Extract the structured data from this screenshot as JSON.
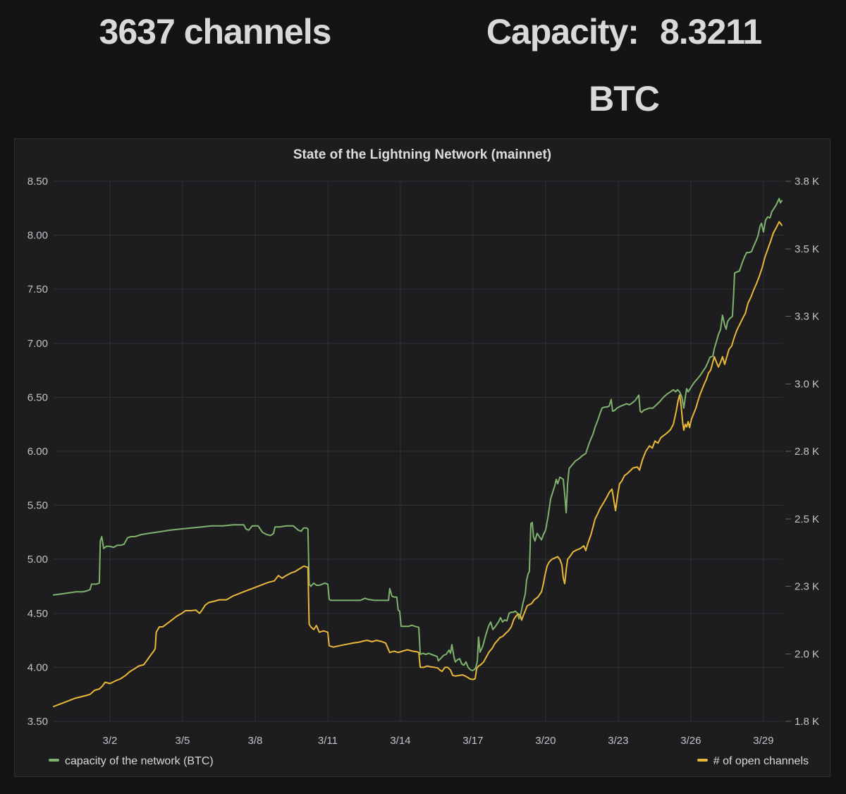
{
  "header": {
    "channels_stat": {
      "value": "3637",
      "label": "channels"
    },
    "capacity_stat": {
      "label": "Capacity:",
      "value": "8.3211",
      "unit": "BTC"
    }
  },
  "panel": {
    "title": "State of the Lightning Network (mainnet)"
  },
  "legend": [
    {
      "label": "capacity of the network (BTC)",
      "color": "#7eb26d"
    },
    {
      "label": "# of open channels",
      "color": "#eab839"
    }
  ],
  "chart_data": {
    "type": "line",
    "title": "State of the Lightning Network (mainnet)",
    "x_unit": "day of March (decimal, window ≈ Feb 27 – Mar 29)",
    "x_range": [
      -0.33,
      29.82
    ],
    "x_ticks": [
      {
        "day": 2,
        "label": "3/2"
      },
      {
        "day": 5,
        "label": "3/5"
      },
      {
        "day": 8,
        "label": "3/8"
      },
      {
        "day": 11,
        "label": "3/11"
      },
      {
        "day": 14,
        "label": "3/14"
      },
      {
        "day": 17,
        "label": "3/17"
      },
      {
        "day": 20,
        "label": "3/20"
      },
      {
        "day": 23,
        "label": "3/23"
      },
      {
        "day": 26,
        "label": "3/26"
      },
      {
        "day": 29,
        "label": "3/29"
      }
    ],
    "grid": true,
    "legend_position": "bottom",
    "left_axis": {
      "range": [
        3.5,
        8.5
      ],
      "tick_values": [
        8.5,
        8.0,
        7.5,
        7.0,
        6.5,
        6.0,
        5.5,
        5.0,
        4.5,
        4.0,
        3.5
      ],
      "tick_labels": [
        "8.50",
        "8.00",
        "7.50",
        "7.00",
        "6.50",
        "6.00",
        "5.50",
        "5.00",
        "4.50",
        "4.00",
        "3.50"
      ]
    },
    "right_axis": {
      "range": [
        1800,
        3800
      ],
      "tick_values": [
        3800,
        3550,
        3300,
        3050,
        2800,
        2550,
        2300,
        2050,
        1800
      ],
      "tick_labels": [
        "3.8 K",
        "3.5 K",
        "3.3 K",
        "3.0 K",
        "2.8 K",
        "2.5 K",
        "2.3 K",
        "2.0 K",
        "1.8 K"
      ]
    },
    "series": [
      {
        "id": "capacity",
        "name": "capacity of the network (BTC)",
        "axis": "left",
        "color": "#7eb26d",
        "x": [
          -0.33,
          0,
          0.3,
          0.6,
          0.9,
          1.07,
          1.18,
          1.24,
          1.42,
          1.56,
          1.6,
          1.66,
          1.74,
          1.85,
          2,
          2.15,
          2.3,
          2.44,
          2.58,
          2.73,
          2.87,
          3.02,
          3.17,
          3.31,
          3.6,
          3.9,
          4.2,
          4.5,
          4.9,
          5.35,
          5.8,
          6.2,
          6.66,
          7.1,
          7.53,
          7.62,
          7.74,
          7.88,
          8.12,
          8.3,
          8.47,
          8.64,
          8.76,
          8.82,
          9,
          9.3,
          9.57,
          9.78,
          9.9,
          10,
          10.13,
          10.18,
          10.23,
          10.3,
          10.42,
          10.53,
          10.65,
          10.77,
          10.88,
          11,
          11.06,
          11.12,
          11.5,
          11.8,
          12.1,
          12.34,
          12.54,
          12.66,
          12.92,
          13.2,
          13.51,
          13.56,
          13.65,
          13.74,
          13.85,
          13.91,
          13.97,
          14.03,
          14.2,
          14.35,
          14.47,
          14.6,
          14.76,
          14.82,
          14.93,
          15.05,
          15.17,
          15.28,
          15.4,
          15.52,
          15.57,
          15.66,
          15.78,
          15.89,
          16.01,
          16.07,
          16.13,
          16.21,
          16.27,
          16.36,
          16.45,
          16.54,
          16.62,
          16.71,
          16.8,
          16.88,
          16.97,
          17.06,
          17.12,
          17.18,
          17.23,
          17.29,
          17.41,
          17.53,
          17.64,
          17.73,
          17.82,
          17.93,
          18.05,
          18.14,
          18.22,
          18.31,
          18.4,
          18.49,
          18.57,
          18.66,
          18.75,
          18.84,
          18.9,
          18.98,
          19.07,
          19.16,
          19.21,
          19.27,
          19.33,
          19.39,
          19.45,
          19.5,
          19.56,
          19.65,
          19.74,
          19.83,
          19.91,
          20,
          20.09,
          20.21,
          20.29,
          20.38,
          20.44,
          20.5,
          20.59,
          20.67,
          20.73,
          20.79,
          20.85,
          20.91,
          20.97,
          21.08,
          21.23,
          21.37,
          21.52,
          21.66,
          21.81,
          21.96,
          22.04,
          22.16,
          22.25,
          22.33,
          22.45,
          22.54,
          22.63,
          22.71,
          22.77,
          22.86,
          22.95,
          23.03,
          23.12,
          23.24,
          23.35,
          23.47,
          23.59,
          23.7,
          23.79,
          23.85,
          23.91,
          23.97,
          24.05,
          24.17,
          24.29,
          24.43,
          24.58,
          24.72,
          24.87,
          25.02,
          25.16,
          25.28,
          25.37,
          25.45,
          25.54,
          25.63,
          25.71,
          25.77,
          25.83,
          25.89,
          25.95,
          26.03,
          26.15,
          26.27,
          26.38,
          26.5,
          26.62,
          26.7,
          26.79,
          26.91,
          26.97,
          27.05,
          27.14,
          27.23,
          27.31,
          27.4,
          27.46,
          27.52,
          27.61,
          27.72,
          27.77,
          27.81,
          27.9,
          28.01,
          28.13,
          28.22,
          28.31,
          28.42,
          28.51,
          28.6,
          28.68,
          28.77,
          28.86,
          28.92,
          29,
          29.09,
          29.18,
          29.27,
          29.35,
          29.44,
          29.53,
          29.59,
          29.65,
          29.7,
          29.76
        ],
        "y": [
          4.67,
          4.68,
          4.69,
          4.7,
          4.7,
          4.71,
          4.72,
          4.77,
          4.77,
          4.78,
          5.17,
          5.21,
          5.1,
          5.12,
          5.12,
          5.11,
          5.13,
          5.13,
          5.14,
          5.2,
          5.21,
          5.21,
          5.22,
          5.23,
          5.24,
          5.25,
          5.26,
          5.27,
          5.28,
          5.29,
          5.3,
          5.31,
          5.31,
          5.32,
          5.32,
          5.28,
          5.27,
          5.31,
          5.31,
          5.25,
          5.23,
          5.22,
          5.24,
          5.3,
          5.3,
          5.31,
          5.31,
          5.27,
          5.26,
          5.29,
          5.29,
          5.28,
          4.77,
          4.75,
          4.78,
          4.76,
          4.76,
          4.77,
          4.78,
          4.77,
          4.63,
          4.62,
          4.62,
          4.62,
          4.62,
          4.62,
          4.64,
          4.63,
          4.62,
          4.62,
          4.62,
          4.73,
          4.66,
          4.65,
          4.65,
          4.53,
          4.52,
          4.38,
          4.38,
          4.38,
          4.39,
          4.38,
          4.37,
          4.12,
          4.13,
          4.12,
          4.13,
          4.12,
          4.11,
          4.1,
          4.06,
          4.08,
          4.11,
          4.12,
          4.16,
          4.13,
          4.21,
          4.1,
          4.05,
          4.07,
          4.08,
          4.03,
          4.02,
          4.05,
          4,
          3.98,
          3.97,
          3.98,
          4,
          4.06,
          4.28,
          4.14,
          4.2,
          4.3,
          4.38,
          4.42,
          4.35,
          4.38,
          4.42,
          4.46,
          4.42,
          4.44,
          4.43,
          4.5,
          4.51,
          4.51,
          4.52,
          4.5,
          4.45,
          4.5,
          4.6,
          4.68,
          4.8,
          4.86,
          4.89,
          5.33,
          5.34,
          5.21,
          5.17,
          5.24,
          5.21,
          5.18,
          5.23,
          5.27,
          5.38,
          5.56,
          5.62,
          5.68,
          5.74,
          5.7,
          5.76,
          5.75,
          5.74,
          5.6,
          5.43,
          5.7,
          5.84,
          5.87,
          5.91,
          5.93,
          5.96,
          5.98,
          6.08,
          6.16,
          6.22,
          6.29,
          6.35,
          6.4,
          6.41,
          6.41,
          6.42,
          6.48,
          6.37,
          6.38,
          6.4,
          6.41,
          6.42,
          6.43,
          6.44,
          6.43,
          6.45,
          6.47,
          6.5,
          6.52,
          6.37,
          6.36,
          6.38,
          6.39,
          6.4,
          6.4,
          6.43,
          6.46,
          6.5,
          6.53,
          6.55,
          6.57,
          6.55,
          6.57,
          6.55,
          6.5,
          6.4,
          6.5,
          6.58,
          6.55,
          6.57,
          6.6,
          6.64,
          6.67,
          6.7,
          6.74,
          6.78,
          6.82,
          6.87,
          6.88,
          6.95,
          7.01,
          7.08,
          7.13,
          7.26,
          7.17,
          7.13,
          7.2,
          7.23,
          7.25,
          7.45,
          7.65,
          7.66,
          7.67,
          7.75,
          7.8,
          7.84,
          7.84,
          7.85,
          7.9,
          7.94,
          7.99,
          8.08,
          8.11,
          8.03,
          8.14,
          8.17,
          8.16,
          8.22,
          8.25,
          8.28,
          8.31,
          8.34,
          8.3,
          8.32
        ]
      },
      {
        "id": "channels",
        "name": "# of open channels",
        "axis": "right",
        "color": "#eab839",
        "x": [
          -0.33,
          0.11,
          0.54,
          0.98,
          1.18,
          1.36,
          1.56,
          1.68,
          1.8,
          2,
          2.23,
          2.44,
          2.64,
          2.82,
          3.02,
          3.19,
          3.4,
          3.6,
          3.72,
          3.81,
          3.87,
          3.91,
          4.04,
          4.18,
          4.33,
          4.48,
          4.62,
          4.77,
          4.97,
          5.12,
          5.35,
          5.55,
          5.7,
          5.79,
          5.93,
          6.08,
          6.31,
          6.52,
          6.81,
          7.1,
          7.39,
          7.68,
          7.97,
          8.26,
          8.55,
          8.79,
          8.96,
          9.11,
          9.28,
          9.49,
          9.66,
          9.83,
          10.01,
          10.18,
          10.23,
          10.3,
          10.42,
          10.53,
          10.65,
          10.82,
          11,
          11.06,
          11.23,
          11.47,
          11.76,
          12.05,
          12.28,
          12.49,
          12.63,
          12.83,
          13.01,
          13.21,
          13.39,
          13.56,
          13.74,
          13.91,
          14.09,
          14.29,
          14.5,
          14.67,
          14.76,
          14.82,
          14.96,
          15.11,
          15.25,
          15.4,
          15.54,
          15.63,
          15.72,
          15.84,
          15.95,
          16.07,
          16.16,
          16.27,
          16.42,
          16.57,
          16.68,
          16.8,
          16.88,
          17,
          17.09,
          17.15,
          17.23,
          17.32,
          17.44,
          17.56,
          17.67,
          17.79,
          17.9,
          18.02,
          18.11,
          18.23,
          18.34,
          18.46,
          18.58,
          18.69,
          18.78,
          18.87,
          18.95,
          19.01,
          19.07,
          19.16,
          19.24,
          19.33,
          19.42,
          19.53,
          19.68,
          19.83,
          19.91,
          19.97,
          20.06,
          20.15,
          20.26,
          20.38,
          20.5,
          20.59,
          20.67,
          20.73,
          20.79,
          20.85,
          20.91,
          21,
          21.14,
          21.29,
          21.43,
          21.58,
          21.66,
          21.75,
          21.87,
          21.96,
          22.04,
          22.16,
          22.25,
          22.33,
          22.45,
          22.54,
          22.63,
          22.74,
          22.8,
          22.89,
          22.98,
          23.06,
          23.15,
          23.26,
          23.38,
          23.5,
          23.61,
          23.7,
          23.79,
          23.88,
          24,
          24.14,
          24.29,
          24.41,
          24.52,
          24.64,
          24.76,
          24.87,
          25.02,
          25.16,
          25.28,
          25.4,
          25.48,
          25.54,
          25.6,
          25.66,
          25.71,
          25.77,
          25.83,
          25.89,
          25.95,
          26.03,
          26.12,
          26.21,
          26.3,
          26.38,
          26.47,
          26.56,
          26.65,
          26.73,
          26.82,
          26.91,
          26.97,
          27.05,
          27.14,
          27.23,
          27.31,
          27.4,
          27.49,
          27.58,
          27.69,
          27.78,
          27.9,
          28.01,
          28.13,
          28.25,
          28.36,
          28.48,
          28.6,
          28.71,
          28.83,
          28.95,
          29.06,
          29.18,
          29.3,
          29.41,
          29.53,
          29.65,
          29.76
        ],
        "y": [
          1855,
          1870,
          1885,
          1895,
          1900,
          1915,
          1920,
          1930,
          1945,
          1940,
          1950,
          1958,
          1970,
          1984,
          1995,
          2005,
          2010,
          2035,
          2050,
          2060,
          2070,
          2130,
          2150,
          2150,
          2160,
          2170,
          2180,
          2190,
          2200,
          2210,
          2210,
          2212,
          2200,
          2210,
          2230,
          2240,
          2245,
          2250,
          2250,
          2265,
          2275,
          2285,
          2295,
          2305,
          2315,
          2320,
          2340,
          2330,
          2340,
          2350,
          2355,
          2365,
          2375,
          2370,
          2160,
          2150,
          2140,
          2155,
          2130,
          2135,
          2130,
          2080,
          2075,
          2080,
          2085,
          2090,
          2093,
          2098,
          2100,
          2095,
          2100,
          2096,
          2090,
          2055,
          2060,
          2055,
          2060,
          2065,
          2060,
          2058,
          2055,
          2000,
          2000,
          2005,
          2002,
          2000,
          1998,
          1990,
          1985,
          2000,
          2000,
          1990,
          1970,
          1968,
          1970,
          1972,
          1968,
          1962,
          1957,
          1955,
          1958,
          1995,
          2005,
          2010,
          2020,
          2040,
          2058,
          2070,
          2088,
          2100,
          2110,
          2115,
          2125,
          2135,
          2150,
          2178,
          2190,
          2198,
          2193,
          2175,
          2190,
          2210,
          2228,
          2232,
          2236,
          2250,
          2260,
          2280,
          2310,
          2340,
          2375,
          2390,
          2400,
          2405,
          2410,
          2400,
          2380,
          2330,
          2310,
          2360,
          2400,
          2410,
          2428,
          2435,
          2440,
          2450,
          2432,
          2460,
          2490,
          2520,
          2548,
          2570,
          2588,
          2600,
          2618,
          2632,
          2648,
          2660,
          2630,
          2580,
          2640,
          2680,
          2690,
          2710,
          2718,
          2728,
          2738,
          2740,
          2742,
          2730,
          2768,
          2800,
          2820,
          2812,
          2838,
          2830,
          2850,
          2858,
          2868,
          2880,
          2900,
          2950,
          2990,
          3008,
          2970,
          2910,
          2878,
          2900,
          2890,
          2910,
          2888,
          2920,
          2940,
          2960,
          2988,
          3010,
          3030,
          3050,
          3068,
          3090,
          3100,
          3130,
          3150,
          3132,
          3112,
          3130,
          3150,
          3122,
          3150,
          3178,
          3190,
          3218,
          3248,
          3268,
          3290,
          3310,
          3348,
          3370,
          3398,
          3420,
          3448,
          3480,
          3518,
          3548,
          3578,
          3608,
          3628,
          3650,
          3637
        ]
      }
    ]
  }
}
